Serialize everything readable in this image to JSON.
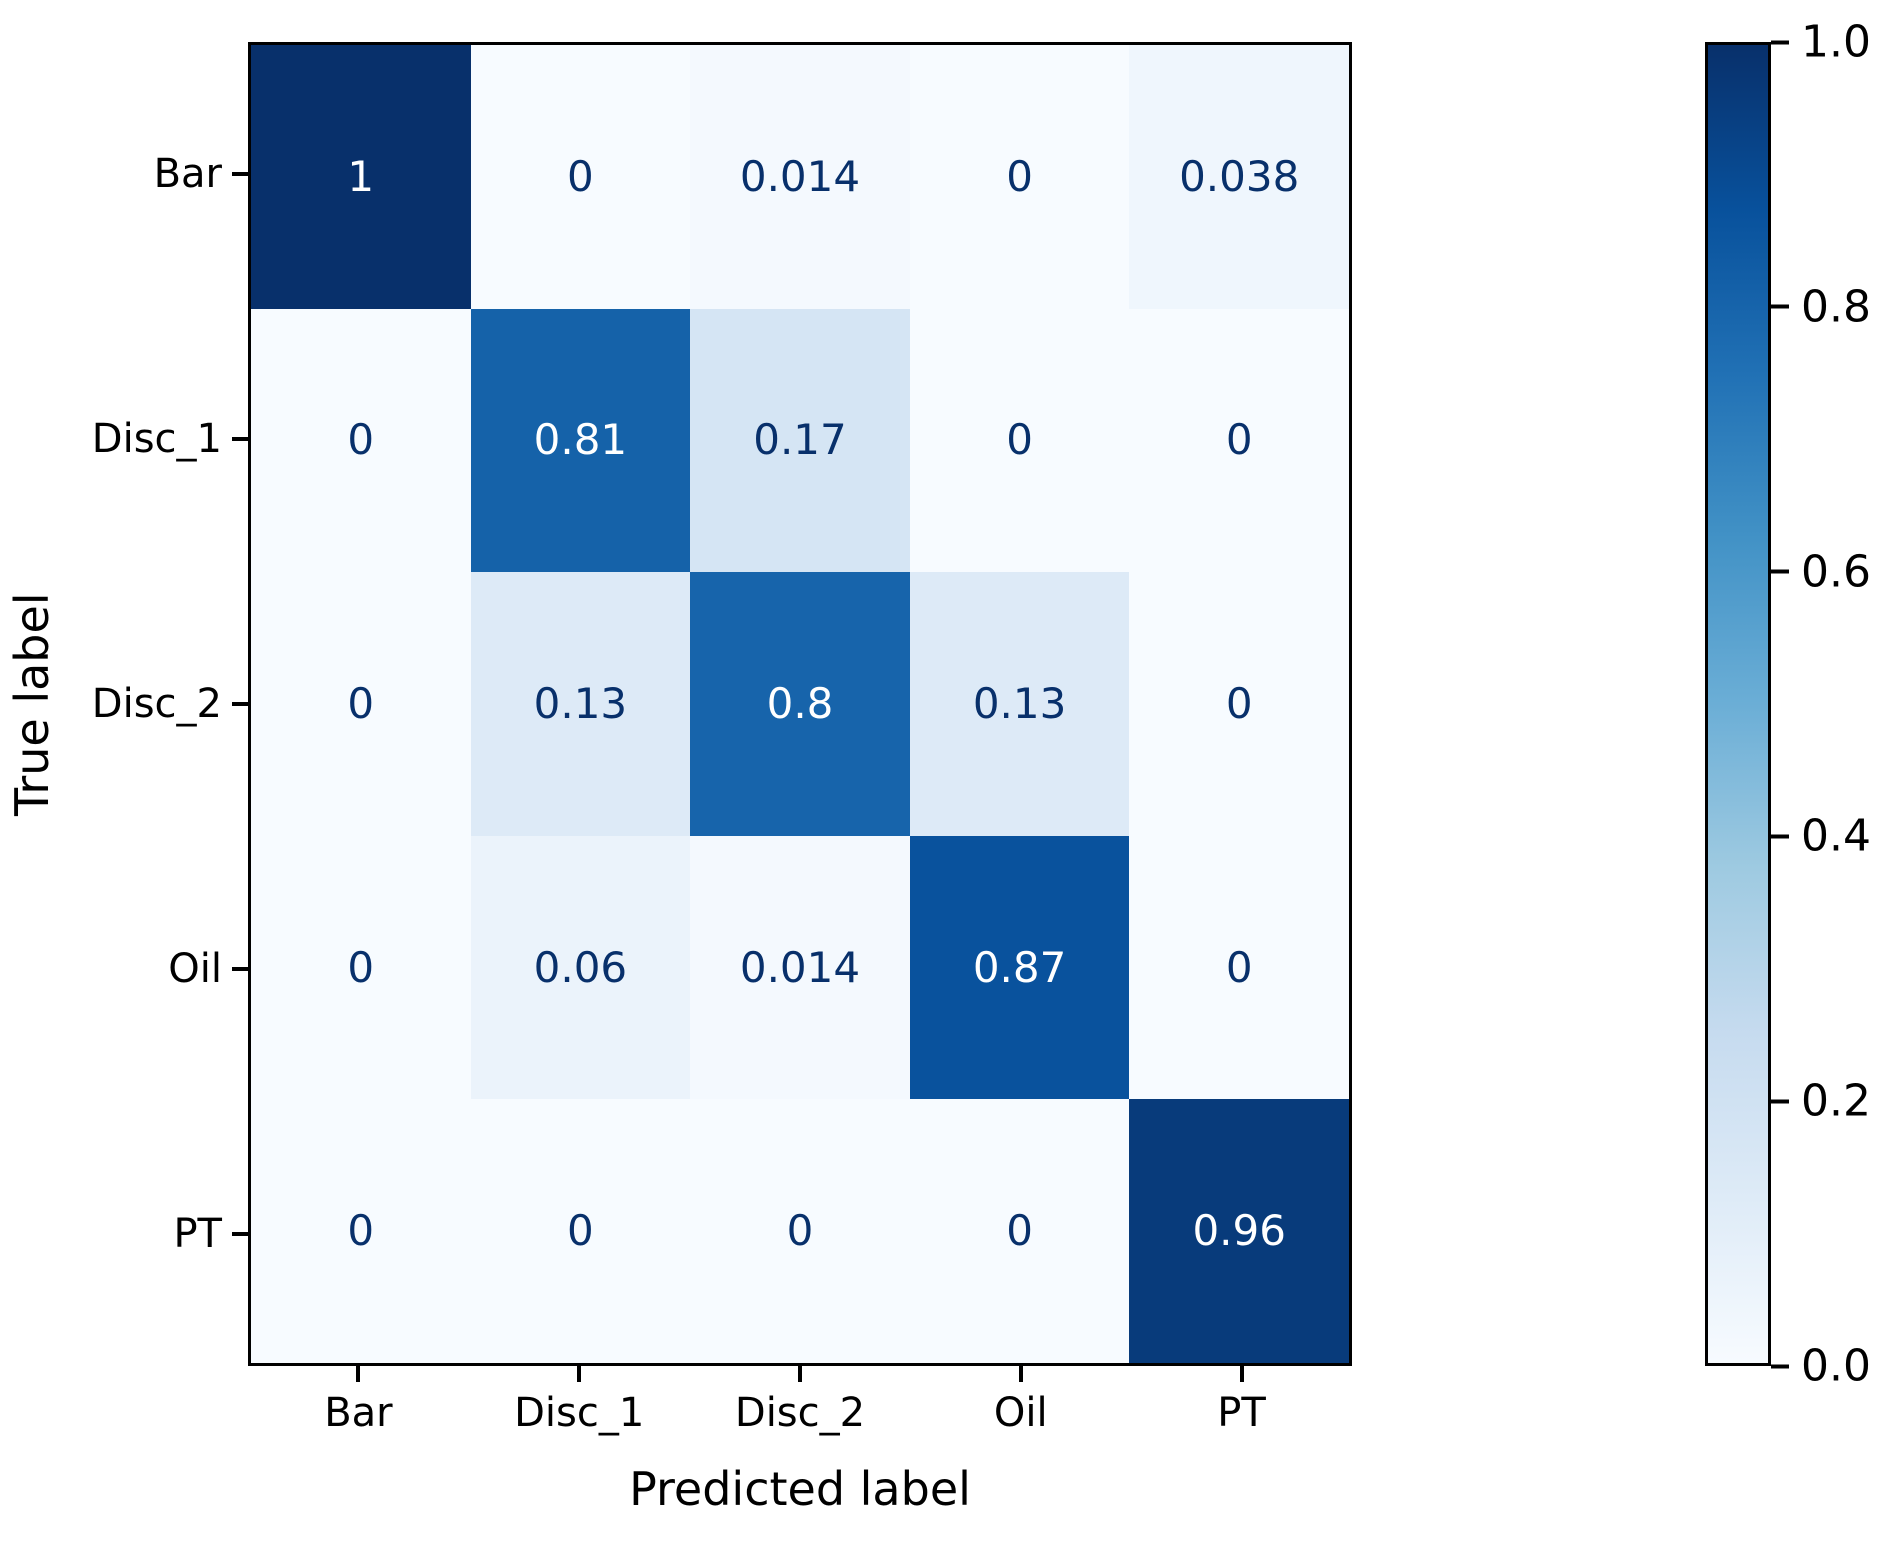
{
  "chart_data": {
    "type": "heatmap",
    "title": "",
    "x_axis_label": "Predicted label",
    "y_axis_label": "True label",
    "x_categories": [
      "Bar",
      "Disc_1",
      "Disc_2",
      "Oil",
      "PT"
    ],
    "y_categories": [
      "Bar",
      "Disc_1",
      "Disc_2",
      "Oil",
      "PT"
    ],
    "matrix": [
      [
        1,
        0,
        0.014,
        0,
        0.038
      ],
      [
        0,
        0.81,
        0.17,
        0,
        0
      ],
      [
        0,
        0.13,
        0.8,
        0.13,
        0
      ],
      [
        0,
        0.06,
        0.014,
        0.87,
        0
      ],
      [
        0,
        0,
        0,
        0,
        0.96
      ]
    ],
    "cell_labels": [
      [
        "1",
        "0",
        "0.014",
        "0",
        "0.038"
      ],
      [
        "0",
        "0.81",
        "0.17",
        "0",
        "0"
      ],
      [
        "0",
        "0.13",
        "0.8",
        "0.13",
        "0"
      ],
      [
        "0",
        "0.06",
        "0.014",
        "0.87",
        "0"
      ],
      [
        "0",
        "0",
        "0",
        "0",
        "0.96"
      ]
    ],
    "vmin": 0,
    "vmax": 1,
    "colormap": "Blues",
    "legend_position": "right-colorbar",
    "grid": false,
    "colorbar": {
      "tick_values": [
        0.0,
        0.2,
        0.4,
        0.6,
        0.8,
        1.0
      ],
      "tick_labels": [
        "0.0",
        "0.2",
        "0.4",
        "0.6",
        "0.8",
        "1.0"
      ]
    },
    "colors": {
      "colormap_stops": [
        "#f7fbff",
        "#deebf7",
        "#c6dbef",
        "#9ecae1",
        "#6baed6",
        "#4292c6",
        "#2171b5",
        "#08519c",
        "#08306b"
      ],
      "text_on_light": "#08306b",
      "text_on_dark": "#ffffff",
      "spine": "#000000",
      "background": "#ffffff"
    },
    "text_color_threshold": 0.5
  }
}
